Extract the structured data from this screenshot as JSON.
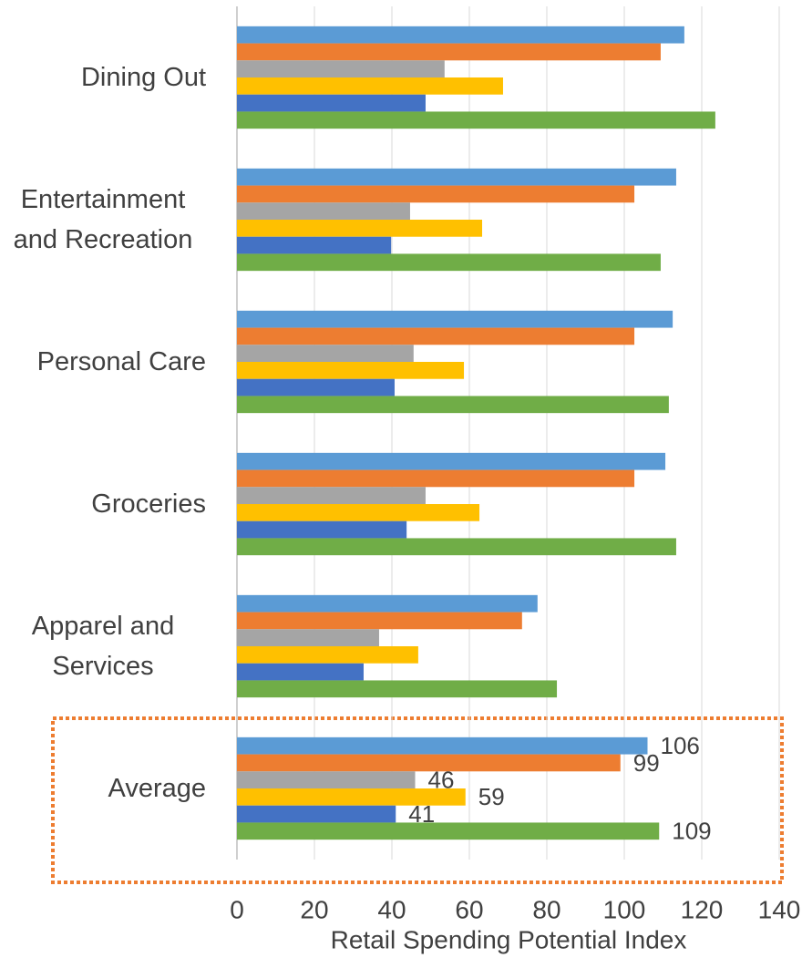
{
  "chart_data": {
    "type": "bar",
    "orientation": "horizontal",
    "xlabel": "Retail Spending Potential Index",
    "categories": [
      "Dining Out",
      "Entertainment and Recreation",
      "Personal Care",
      "Groceries",
      "Apparel and Services",
      "Average"
    ],
    "series": [
      {
        "color": "#5b9bd5",
        "values": [
          115.5,
          113.4,
          112.5,
          110.6,
          77.6,
          106
        ],
        "value_labels": [
          null,
          null,
          null,
          null,
          null,
          "106"
        ]
      },
      {
        "color": "#ed7d31",
        "values": [
          109.4,
          102.6,
          102.6,
          102.6,
          73.6,
          99
        ],
        "value_labels": [
          null,
          null,
          null,
          null,
          null,
          "99"
        ]
      },
      {
        "color": "#a5a5a5",
        "values": [
          53.6,
          44.7,
          45.6,
          48.7,
          36.7,
          46
        ],
        "value_labels": [
          null,
          null,
          null,
          null,
          null,
          "46"
        ]
      },
      {
        "color": "#ffc000",
        "values": [
          68.7,
          63.3,
          58.6,
          62.6,
          46.8,
          59
        ],
        "value_labels": [
          null,
          null,
          null,
          null,
          null,
          "59"
        ]
      },
      {
        "color": "#4472c4",
        "values": [
          48.7,
          39.8,
          40.7,
          43.8,
          32.7,
          41
        ],
        "value_labels": [
          null,
          null,
          null,
          null,
          null,
          "41"
        ]
      },
      {
        "color": "#70ad47",
        "values": [
          123.5,
          109.4,
          111.5,
          113.4,
          82.6,
          109
        ],
        "value_labels": [
          null,
          null,
          null,
          null,
          null,
          "109"
        ]
      }
    ],
    "xlim": [
      0,
      140
    ],
    "xticks": [
      0,
      20,
      40,
      60,
      80,
      100,
      120,
      140
    ],
    "grid": true
  }
}
